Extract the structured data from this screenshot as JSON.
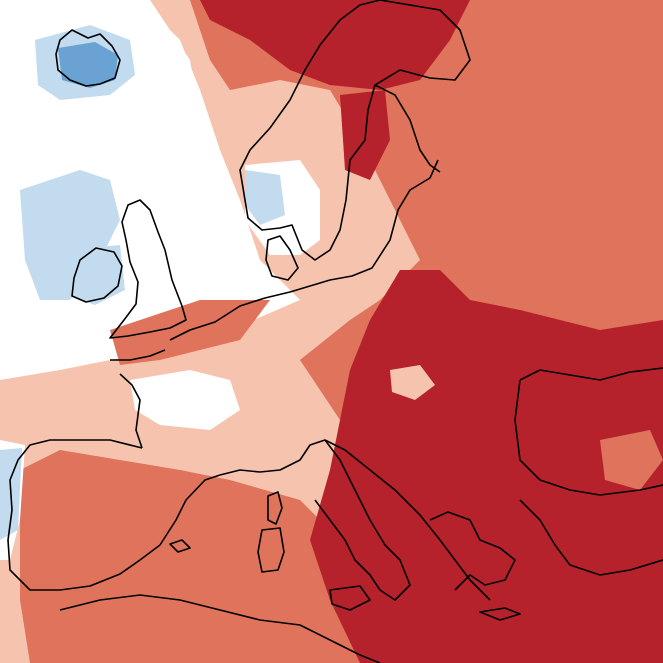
{
  "map": {
    "palette": {
      "deep_red": "#b5222b",
      "red": "#e0735b",
      "light_red": "#f6c4ae",
      "white": "#ffffff",
      "light_blue": "#c3dbee",
      "blue": "#6aa3d3",
      "coastline": "#000000"
    }
  }
}
